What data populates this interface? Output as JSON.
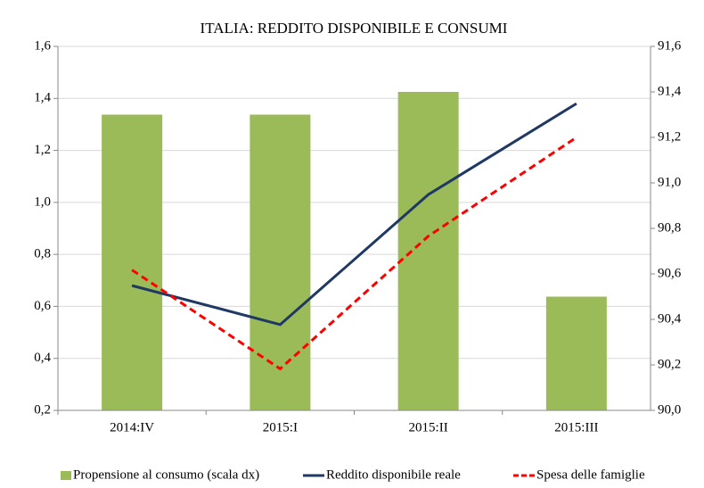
{
  "chart_data": {
    "type": "bar",
    "title": "ITALIA: REDDITO DISPONIBILE E CONSUMI",
    "categories": [
      "2014:IV",
      "2015:I",
      "2015:II",
      "2015:III"
    ],
    "series": [
      {
        "name": "Propensione al consumo (scala dx)",
        "color": "#9bbb59",
        "type": "bar",
        "axis": "y2",
        "values": [
          91.3,
          91.3,
          91.4,
          90.5
        ]
      },
      {
        "name": "Reddito disponibile reale",
        "color": "#1f3864",
        "type": "line",
        "values": [
          0.68,
          0.53,
          1.03,
          1.38
        ]
      },
      {
        "name": "Spesa delle famiglie",
        "color": "#ff0000",
        "type": "line",
        "dashed": true,
        "values": [
          0.74,
          0.36,
          0.87,
          1.25
        ]
      }
    ],
    "ylim": [
      0.2,
      1.6
    ],
    "yticks": [
      {
        "value": 0.2,
        "label": "0,2"
      },
      {
        "value": 0.4,
        "label": "0,4"
      },
      {
        "value": 0.6,
        "label": "0,6"
      },
      {
        "value": 0.8,
        "label": "0,8"
      },
      {
        "value": 1.0,
        "label": "1,0"
      },
      {
        "value": 1.2,
        "label": "1,2"
      },
      {
        "value": 1.4,
        "label": "1,4"
      },
      {
        "value": 1.6,
        "label": "1,6"
      }
    ],
    "y2lim": [
      90.0,
      91.6
    ],
    "y2ticks": [
      {
        "value": 90.0,
        "label": "90,0"
      },
      {
        "value": 90.2,
        "label": "90,2"
      },
      {
        "value": 90.4,
        "label": "90,4"
      },
      {
        "value": 90.6,
        "label": "90,6"
      },
      {
        "value": 90.8,
        "label": "90,8"
      },
      {
        "value": 91.0,
        "label": "91,0"
      },
      {
        "value": 91.2,
        "label": "91,2"
      },
      {
        "value": 91.4,
        "label": "91,4"
      },
      {
        "value": 91.6,
        "label": "91,6"
      }
    ],
    "grid": true
  }
}
